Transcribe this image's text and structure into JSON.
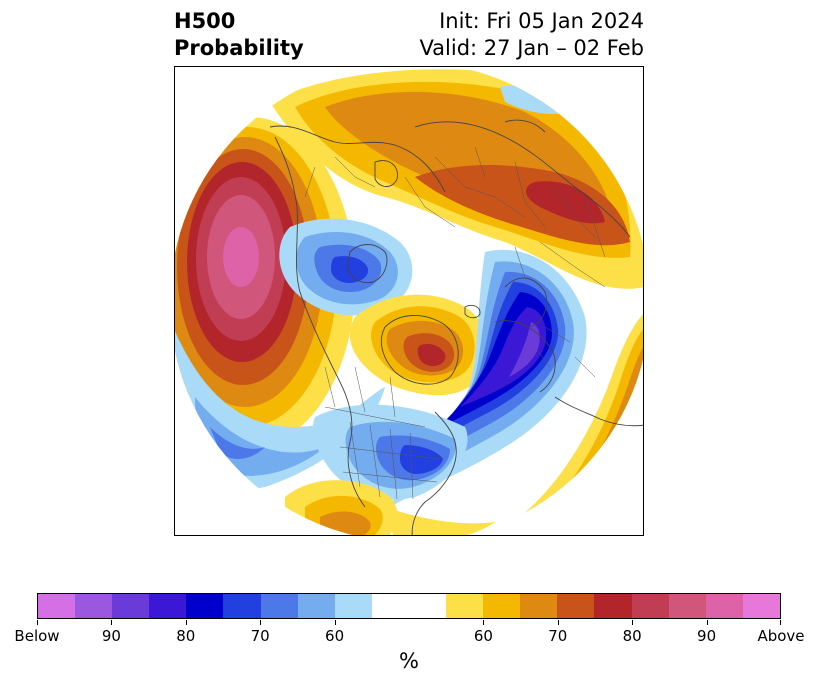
{
  "title": {
    "left_line1": "H500",
    "left_line2": "Probability",
    "right_line1": "Init: Fri 05 Jan 2024",
    "right_line2": "Valid: 27 Jan – 02 Feb"
  },
  "colorbar": {
    "colors": [
      "#d56fe6",
      "#9c57e0",
      "#6b3bd9",
      "#3a18d6",
      "#0000cd",
      "#2240e0",
      "#4d78e8",
      "#74acf0",
      "#a9dbf8",
      "#ffffff",
      "#ffffff",
      "#fde047",
      "#f5b800",
      "#de8a12",
      "#c9541a",
      "#b2252b",
      "#c13d53",
      "#d0567c",
      "#dd62a8",
      "#e877dc"
    ],
    "labels": [
      "Below",
      "90",
      "80",
      "70",
      "60",
      "60",
      "70",
      "80",
      "90",
      "Above"
    ],
    "unit": "%"
  },
  "map": {
    "projection": "north-polar-stereographic",
    "features": [
      "below-normal-anomaly-probability",
      "above-normal-anomaly-probability",
      "coastlines",
      "country-borders",
      "us-state-borders"
    ]
  }
}
